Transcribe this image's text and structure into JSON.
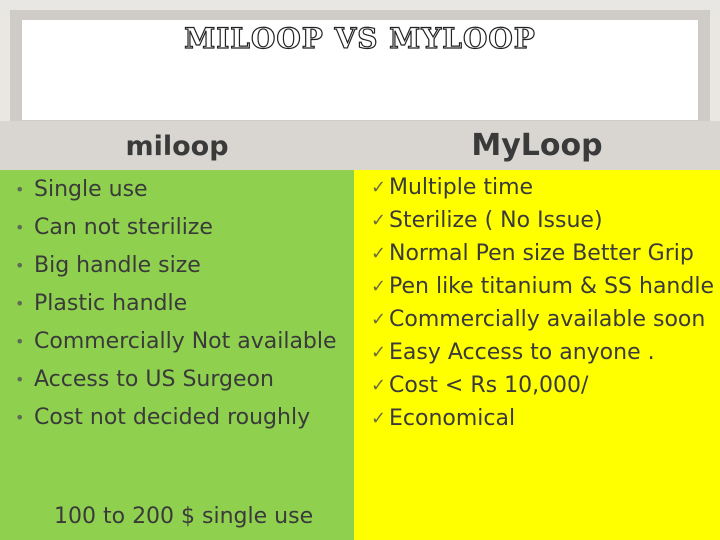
{
  "title": "MILOOP VS MYLOOP",
  "left_column": {
    "heading": "miloop",
    "items": [
      "Single  use",
      "Can not sterilize",
      "Big handle size",
      "Plastic handle",
      "Commercially Not available",
      "Access to US Surgeon",
      "Cost not decided roughly"
    ],
    "sub_note": "100 to 200 $ single use"
  },
  "right_column": {
    "heading": "MyLoop",
    "items": [
      "Multiple time",
      "Sterilize ( No Issue)",
      "Normal Pen size Better Grip",
      "Pen like titanium & SS handle",
      "Commercially available soon",
      "Easy Access to anyone .",
      "Cost < Rs 10,000/",
      "Economical"
    ]
  },
  "colors": {
    "left_bg": "#8fd14f",
    "right_bg": "#ffff00",
    "header_band": "#d9d6d2"
  }
}
